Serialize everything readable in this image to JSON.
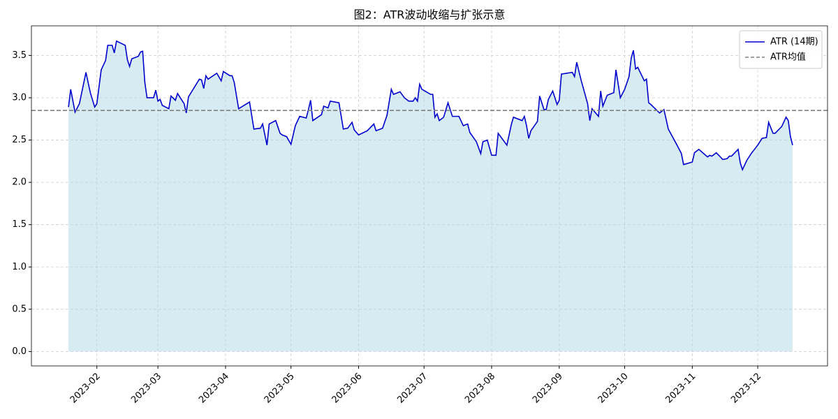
{
  "chart_data": {
    "type": "line",
    "title": "图2：ATR波动收缩与扩张示意",
    "x": [
      "2023-01-19",
      "2023-01-20",
      "2023-01-22",
      "2023-01-24",
      "2023-01-27",
      "2023-01-29",
      "2023-01-31",
      "2023-02-01",
      "2023-02-03",
      "2023-02-05",
      "2023-02-06",
      "2023-02-08",
      "2023-02-09",
      "2023-02-10",
      "2023-02-14",
      "2023-02-15",
      "2023-02-16",
      "2023-02-17",
      "2023-02-20",
      "2023-02-21",
      "2023-02-22",
      "2023-02-23",
      "2023-02-24",
      "2023-02-27",
      "2023-02-28",
      "2023-03-01",
      "2023-03-02",
      "2023-03-03",
      "2023-03-06",
      "2023-03-07",
      "2023-03-09",
      "2023-03-10",
      "2023-03-13",
      "2023-03-14",
      "2023-03-15",
      "2023-03-20",
      "2023-03-21",
      "2023-03-22",
      "2023-03-23",
      "2023-03-24",
      "2023-03-28",
      "2023-03-30",
      "2023-03-31",
      "2023-04-03",
      "2023-04-04",
      "2023-04-05",
      "2023-04-07",
      "2023-04-12",
      "2023-04-14",
      "2023-04-17",
      "2023-04-18",
      "2023-04-20",
      "2023-04-21",
      "2023-04-24",
      "2023-04-26",
      "2023-04-27",
      "2023-04-29",
      "2023-05-01",
      "2023-05-03",
      "2023-05-05",
      "2023-05-08",
      "2023-05-09",
      "2023-05-10",
      "2023-05-11",
      "2023-05-15",
      "2023-05-16",
      "2023-05-18",
      "2023-05-19",
      "2023-05-23",
      "2023-05-25",
      "2023-05-27",
      "2023-05-29",
      "2023-05-30",
      "2023-06-01",
      "2023-06-05",
      "2023-06-08",
      "2023-06-09",
      "2023-06-12",
      "2023-06-14",
      "2023-06-16",
      "2023-06-17",
      "2023-06-20",
      "2023-06-22",
      "2023-06-24",
      "2023-06-26",
      "2023-06-27",
      "2023-06-28",
      "2023-06-29",
      "2023-06-30",
      "2023-07-04",
      "2023-07-05",
      "2023-07-06",
      "2023-07-07",
      "2023-07-08",
      "2023-07-10",
      "2023-07-12",
      "2023-07-14",
      "2023-07-17",
      "2023-07-19",
      "2023-07-21",
      "2023-07-22",
      "2023-07-25",
      "2023-07-27",
      "2023-07-28",
      "2023-07-30",
      "2023-08-01",
      "2023-08-03",
      "2023-08-04",
      "2023-08-08",
      "2023-08-10",
      "2023-08-11",
      "2023-08-15",
      "2023-08-16",
      "2023-08-17",
      "2023-08-18",
      "2023-08-19",
      "2023-08-22",
      "2023-08-23",
      "2023-08-25",
      "2023-08-26",
      "2023-08-27",
      "2023-08-29",
      "2023-08-31",
      "2023-09-01",
      "2023-09-02",
      "2023-09-07",
      "2023-09-08",
      "2023-09-09",
      "2023-09-11",
      "2023-09-14",
      "2023-09-15",
      "2023-09-16",
      "2023-09-19",
      "2023-09-20",
      "2023-09-21",
      "2023-09-23",
      "2023-09-26",
      "2023-09-27",
      "2023-09-29",
      "2023-10-01",
      "2023-10-03",
      "2023-10-04",
      "2023-10-05",
      "2023-10-06",
      "2023-10-07",
      "2023-10-10",
      "2023-10-11",
      "2023-10-12",
      "2023-10-13",
      "2023-10-15",
      "2023-10-17",
      "2023-10-19",
      "2023-10-21",
      "2023-10-25",
      "2023-10-27",
      "2023-10-28",
      "2023-11-01",
      "2023-11-02",
      "2023-11-04",
      "2023-11-08",
      "2023-11-09",
      "2023-11-10",
      "2023-11-12",
      "2023-11-15",
      "2023-11-17",
      "2023-11-18",
      "2023-11-19",
      "2023-11-22",
      "2023-11-23",
      "2023-11-24",
      "2023-11-26",
      "2023-11-28",
      "2023-12-01",
      "2023-12-03",
      "2023-12-05",
      "2023-12-06",
      "2023-12-08",
      "2023-12-09",
      "2023-12-12",
      "2023-12-14",
      "2023-12-15",
      "2023-12-16",
      "2023-12-17"
    ],
    "series": [
      {
        "name": "ATR (14期)",
        "color": "#0000cd",
        "fill_color": "#add8e6",
        "values": [
          2.89,
          3.1,
          2.83,
          2.93,
          3.3,
          3.06,
          2.89,
          2.93,
          3.33,
          3.44,
          3.62,
          3.62,
          3.53,
          3.67,
          3.62,
          3.45,
          3.37,
          3.46,
          3.49,
          3.54,
          3.55,
          3.18,
          3.0,
          3.0,
          3.09,
          2.96,
          2.98,
          2.91,
          2.87,
          3.02,
          2.97,
          3.05,
          2.93,
          2.82,
          3.01,
          3.22,
          3.21,
          3.11,
          3.26,
          3.22,
          3.29,
          3.2,
          3.31,
          3.26,
          3.26,
          3.18,
          2.87,
          2.95,
          2.63,
          2.64,
          2.69,
          2.44,
          2.69,
          2.73,
          2.58,
          2.56,
          2.54,
          2.45,
          2.67,
          2.78,
          2.76,
          2.86,
          2.97,
          2.73,
          2.8,
          2.9,
          2.88,
          2.96,
          2.94,
          2.63,
          2.64,
          2.71,
          2.62,
          2.56,
          2.61,
          2.69,
          2.61,
          2.64,
          2.79,
          3.1,
          3.04,
          3.07,
          3.0,
          2.96,
          2.96,
          3.0,
          2.96,
          3.16,
          3.1,
          3.04,
          3.04,
          2.77,
          2.81,
          2.73,
          2.77,
          2.94,
          2.78,
          2.78,
          2.67,
          2.69,
          2.59,
          2.48,
          2.34,
          2.48,
          2.5,
          2.32,
          2.32,
          2.58,
          2.44,
          2.68,
          2.77,
          2.73,
          2.78,
          2.67,
          2.52,
          2.61,
          2.72,
          3.02,
          2.86,
          2.86,
          2.98,
          3.08,
          2.92,
          2.97,
          3.28,
          3.3,
          3.25,
          3.42,
          3.21,
          2.93,
          2.73,
          2.87,
          2.78,
          3.08,
          2.9,
          3.03,
          3.06,
          3.33,
          3.0,
          3.1,
          3.25,
          3.47,
          3.56,
          3.34,
          3.36,
          3.2,
          3.22,
          2.94,
          2.92,
          2.87,
          2.82,
          2.86,
          2.63,
          2.44,
          2.34,
          2.21,
          2.24,
          2.35,
          2.39,
          2.3,
          2.32,
          2.31,
          2.35,
          2.27,
          2.28,
          2.31,
          2.31,
          2.39,
          2.23,
          2.15,
          2.26,
          2.34,
          2.44,
          2.52,
          2.53,
          2.71,
          2.58,
          2.58,
          2.66,
          2.77,
          2.73,
          2.54,
          2.44
        ]
      }
    ],
    "reference_lines": [
      {
        "name": "ATR均值",
        "value": 2.85,
        "color": "#808080"
      }
    ],
    "xlim": [
      "2023-01-02",
      "2024-01-02"
    ],
    "xticks": [
      "2023-02",
      "2023-03",
      "2023-04",
      "2023-05",
      "2023-06",
      "2023-07",
      "2023-08",
      "2023-09",
      "2023-10",
      "2023-11",
      "2023-12"
    ],
    "ylim": [
      -0.17,
      3.85
    ],
    "yticks": [
      {
        "value": 0,
        "label": "0.0"
      },
      {
        "value": 0.5,
        "label": "0.5"
      },
      {
        "value": 1,
        "label": "1.0"
      },
      {
        "value": 1.5,
        "label": "1.5"
      },
      {
        "value": 2,
        "label": "2.0"
      },
      {
        "value": 2.5,
        "label": "2.5"
      },
      {
        "value": 3,
        "label": "3.0"
      },
      {
        "value": 3.5,
        "label": "3.5"
      }
    ],
    "grid": true,
    "legend": "upper right"
  }
}
